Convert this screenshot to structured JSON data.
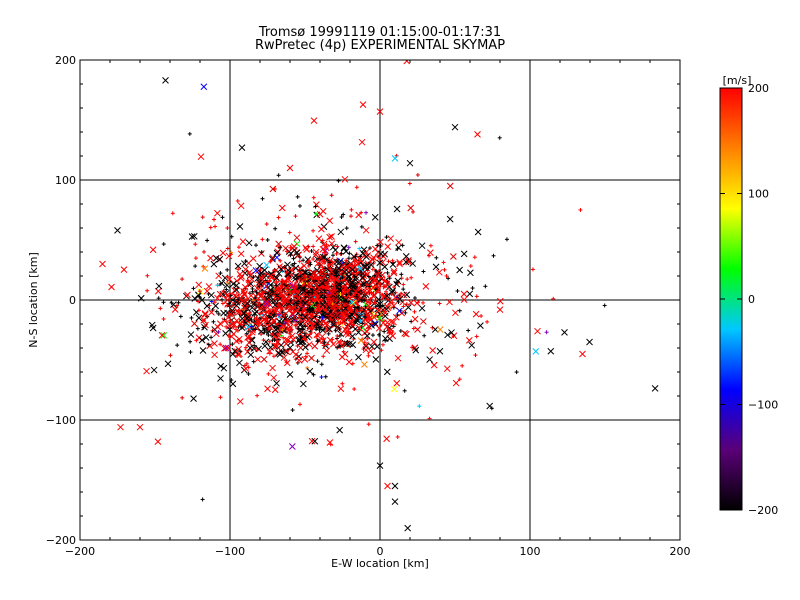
{
  "chart_data": {
    "type": "scatter",
    "title": "Tromsø 19991119 01:15:00-01:17:31",
    "subtitle": "RwPretec (4p) EXPERIMENTAL SKYMAP",
    "xlabel": "E-W location [km]",
    "ylabel": "N-S location [km]",
    "xlim": [
      -200,
      200
    ],
    "ylim": [
      -200,
      200
    ],
    "x_ticks": [
      -200,
      -100,
      0,
      100,
      200
    ],
    "y_ticks": [
      -200,
      -100,
      0,
      100,
      200
    ],
    "grid": true,
    "colorbar": {
      "label": "[m/s]",
      "range": [
        -200,
        200
      ],
      "ticks": [
        -200,
        -100,
        0,
        100,
        200
      ],
      "colors": [
        "#000000",
        "#5a0078",
        "#0000ff",
        "#00c8ff",
        "#00ff00",
        "#ffff00",
        "#ff8000",
        "#ff0000"
      ]
    },
    "marker_types": [
      "x",
      "+"
    ],
    "points_approx_count": 2200,
    "distribution": {
      "main_cluster_center": [
        -35,
        5
      ],
      "main_cluster_spread_x": 40,
      "main_cluster_spread_y": 25,
      "dominant_colors": [
        "#ff0000",
        "#000000"
      ]
    }
  }
}
